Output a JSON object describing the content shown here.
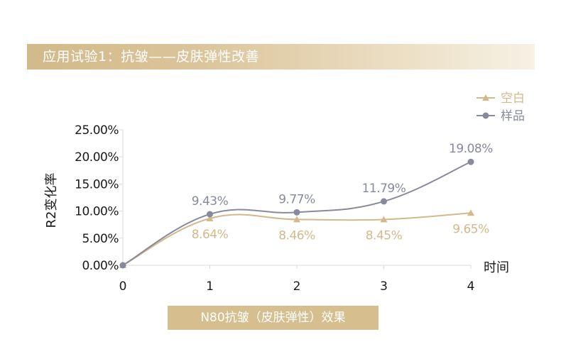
{
  "header": {
    "title": "应用试验1：抗皱——皮肤弹性改善"
  },
  "caption": {
    "text": "N80抗皱（皮肤弹性）效果"
  },
  "colors": {
    "blank": "#d2b98a",
    "sample": "#878a9c",
    "axis": "#d9d9d9",
    "text": "#1a1a1a"
  },
  "chart_data": {
    "type": "line",
    "title": "",
    "xlabel": "时间",
    "ylabel": "R2变化率",
    "x": [
      0,
      1,
      2,
      3,
      4
    ],
    "x_tick_labels": [
      "0",
      "1",
      "2",
      "3",
      "4"
    ],
    "y_tick_labels": [
      "0.00%",
      "5.00%",
      "10.00%",
      "15.00%",
      "20.00%",
      "25.00%"
    ],
    "ylim": [
      0,
      25
    ],
    "grid": false,
    "legend_position": "top-right",
    "series": [
      {
        "name": "空白",
        "marker": "triangle",
        "color": "#d2b98a",
        "values": [
          0,
          8.64,
          8.46,
          8.45,
          9.65
        ],
        "data_labels": [
          "",
          "8.64%",
          "8.46%",
          "8.45%",
          "9.65%"
        ]
      },
      {
        "name": "样品",
        "marker": "circle",
        "color": "#878a9c",
        "values": [
          0,
          9.43,
          9.77,
          11.79,
          19.08
        ],
        "data_labels": [
          "",
          "9.43%",
          "9.77%",
          "11.79%",
          "19.08%"
        ]
      }
    ]
  }
}
